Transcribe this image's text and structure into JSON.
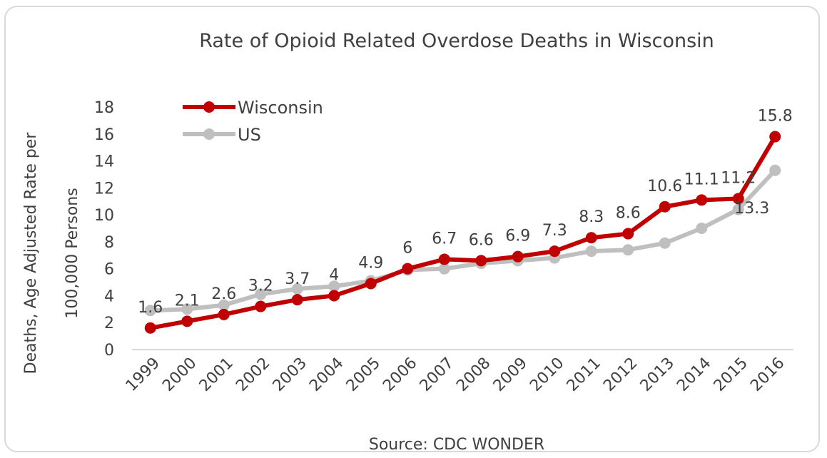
{
  "chart_data": {
    "type": "line",
    "title": "Rate of Opioid Related Overdose Deaths in Wisconsin",
    "ylabel_lines": [
      "Deaths, Age Adjusted Rate per",
      "100,000 Persons"
    ],
    "source": "Source: CDC WONDER",
    "ylim": [
      0,
      18
    ],
    "yticks": [
      0,
      2,
      4,
      6,
      8,
      10,
      12,
      14,
      16,
      18
    ],
    "grid": false,
    "legend": "top-left",
    "x": [
      "1999",
      "2000",
      "2001",
      "2002",
      "2003",
      "2004",
      "2005",
      "2006",
      "2007",
      "2008",
      "2009",
      "2010",
      "2011",
      "2012",
      "2013",
      "2014",
      "2015",
      "2016"
    ],
    "series": [
      {
        "name": "Wisconsin",
        "color": "#c00000",
        "values": [
          1.6,
          2.1,
          2.6,
          3.2,
          3.7,
          4,
          4.9,
          6,
          6.7,
          6.6,
          6.9,
          7.3,
          8.3,
          8.6,
          10.6,
          11.1,
          11.2,
          15.8
        ],
        "labels": [
          "1.6",
          "2.1",
          "2.6",
          "3.2",
          "3.7",
          "4",
          "4.9",
          "6",
          "6.7",
          "6.6",
          "6.9",
          "7.3",
          "8.3",
          "8.6",
          "10.6",
          "11.1",
          "11.2",
          "15.8"
        ]
      },
      {
        "name": "US",
        "color": "#bfbfbf",
        "values": [
          2.9,
          3.0,
          3.3,
          4.1,
          4.5,
          4.7,
          5.1,
          5.9,
          6.0,
          6.4,
          6.6,
          6.8,
          7.3,
          7.4,
          7.9,
          9.0,
          10.4,
          13.3
        ],
        "labels": [
          "",
          "",
          "",
          "",
          "",
          "",
          "",
          "",
          "",
          "",
          "",
          "",
          "",
          "",
          "",
          "",
          "",
          "13.3"
        ]
      }
    ]
  }
}
